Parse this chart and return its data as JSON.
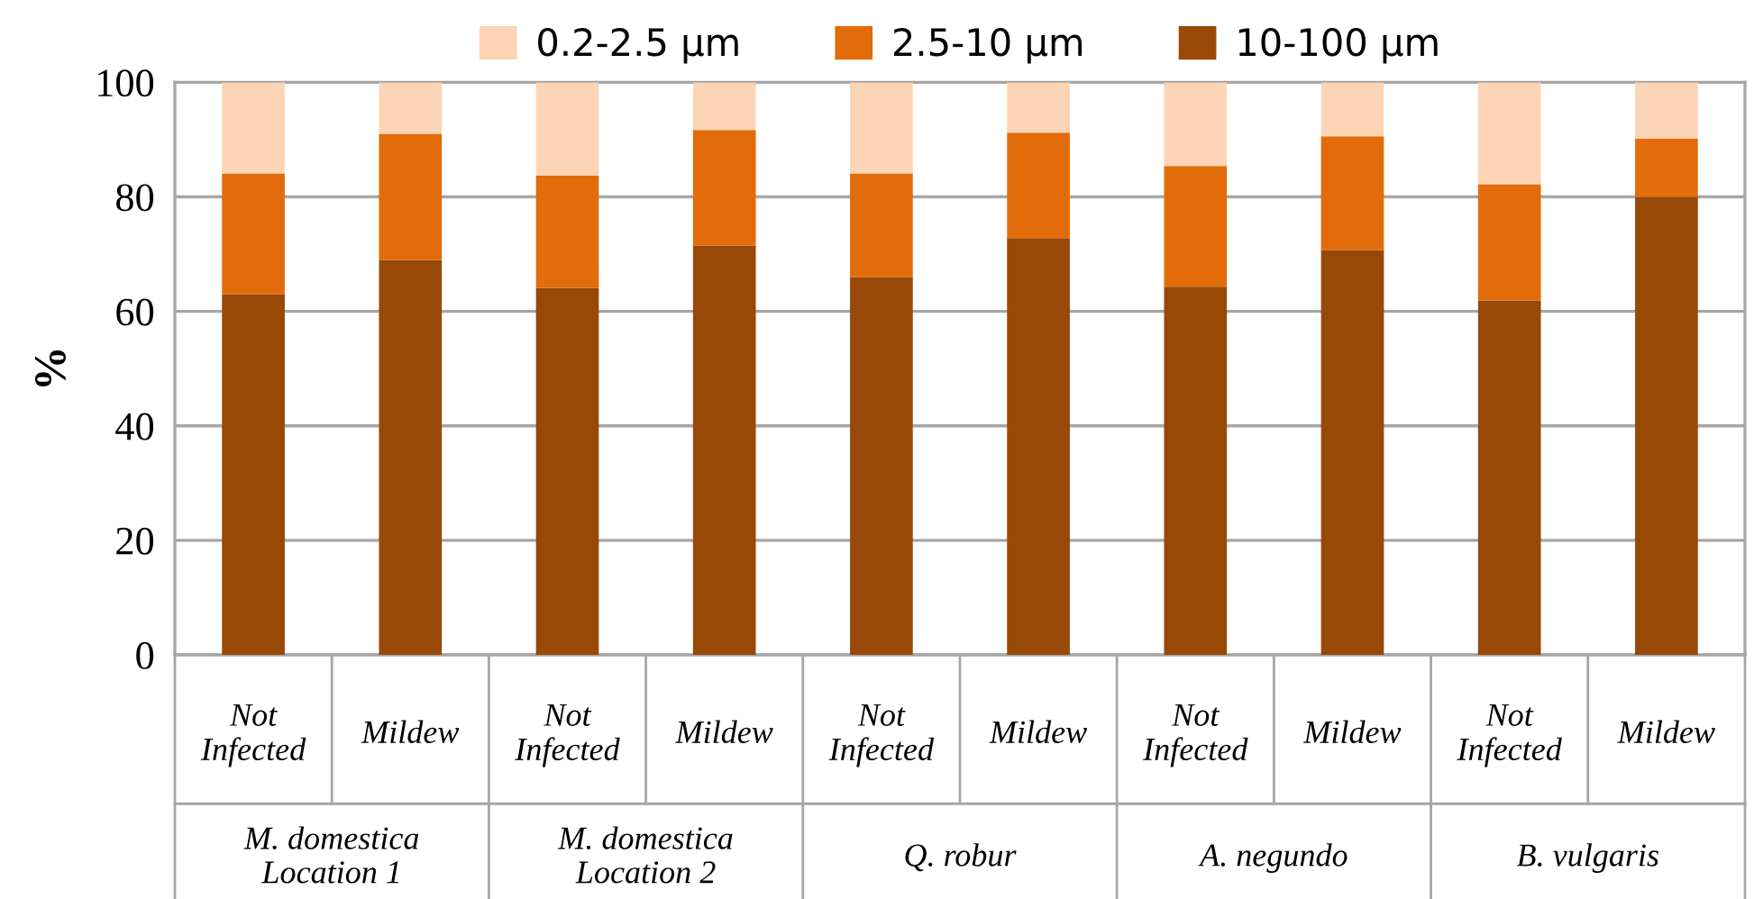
{
  "chart_data": {
    "type": "bar",
    "stacked": true,
    "ylabel": "%",
    "categories": [
      "Not Infected",
      "Mildew",
      "Not Infected",
      "Mildew",
      "Not Infected",
      "Mildew",
      "Not Infected",
      "Mildew",
      "Not Infected",
      "Mildew"
    ],
    "annotations": [
      "M. domestica Location 1",
      "M. domestica Location 2",
      "Q. robur",
      "A. negundo",
      "B. vulgaris"
    ],
    "series": [
      {
        "name": "10-100 µm",
        "color": "#984807",
        "values": [
          63.0,
          69.0,
          64.1,
          71.5,
          66.0,
          72.8,
          64.3,
          70.7,
          61.9,
          80.0
        ]
      },
      {
        "name": "2.5-10 µm",
        "color": "#e36c0a",
        "values": [
          21.1,
          22.0,
          19.6,
          20.2,
          18.1,
          18.4,
          21.1,
          19.9,
          20.3,
          10.2
        ]
      },
      {
        "name": "0.2-2.5 µm",
        "color": "#fbd5b5",
        "values": [
          15.9,
          9.0,
          16.3,
          8.3,
          15.9,
          8.8,
          14.6,
          9.4,
          17.8,
          9.8
        ]
      }
    ],
    "ylim": [
      0,
      100
    ],
    "yticks": [
      0,
      20,
      40,
      60,
      80,
      100
    ],
    "grid": "y",
    "legend": "top"
  }
}
